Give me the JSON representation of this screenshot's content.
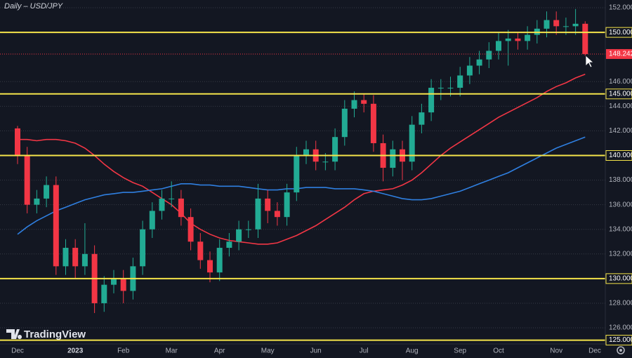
{
  "chart_data": {
    "type": "candlestick",
    "title": "Daily – USD/JPY",
    "watermark": "TradingView",
    "categories": [
      "Dec",
      null,
      null,
      null,
      null,
      null,
      "2023",
      null,
      null,
      null,
      null,
      "Feb",
      null,
      null,
      null,
      null,
      "Mar",
      null,
      null,
      null,
      null,
      "Apr",
      null,
      null,
      null,
      null,
      "May",
      null,
      null,
      null,
      null,
      "Jun",
      null,
      null,
      null,
      null,
      "Jul",
      null,
      null,
      null,
      null,
      "Aug",
      null,
      null,
      null,
      null,
      "Sep",
      null,
      null,
      null,
      "Oct",
      null,
      null,
      null,
      null,
      null,
      "Nov",
      null,
      null,
      null,
      "Dec"
    ],
    "open": [
      142.2,
      140.0,
      136.0,
      136.5,
      137.6,
      131.0,
      132.5,
      131.0,
      132.0,
      128.0,
      129.5,
      130.0,
      129.0,
      131.0,
      134.0,
      135.5,
      136.5,
      136.5,
      135.0,
      133.0,
      131.5,
      130.5,
      132.5,
      133.0,
      134.0,
      134.0,
      136.5,
      135.5,
      135.0,
      137.0,
      140.0,
      140.5,
      139.5,
      139.5,
      141.5,
      143.8,
      144.5,
      144.2,
      141.0,
      139.0,
      140.5,
      139.5,
      142.5,
      143.5,
      145.5,
      145.5,
      145.5,
      146.5,
      147.3,
      147.8,
      148.5,
      149.3,
      149.5,
      149.3,
      149.8,
      150.3,
      151.0,
      150.5,
      150.5,
      150.7,
      null
    ],
    "high": [
      142.4,
      140.7,
      137.2,
      138.3,
      138.3,
      133.2,
      133.2,
      134.5,
      132.7,
      130.2,
      130.7,
      130.7,
      131.7,
      134.7,
      136.2,
      137.2,
      137.9,
      137.2,
      135.7,
      133.7,
      132.2,
      133.2,
      133.7,
      134.7,
      134.7,
      137.7,
      137.2,
      136.2,
      137.7,
      140.7,
      141.2,
      141.2,
      140.2,
      142.2,
      144.5,
      145.2,
      145.0,
      144.9,
      141.7,
      141.2,
      141.2,
      143.2,
      144.2,
      146.2,
      146.2,
      146.4,
      147.2,
      148.0,
      148.5,
      149.2,
      150.0,
      150.2,
      150.0,
      150.5,
      151.0,
      151.7,
      151.7,
      151.2,
      151.9,
      150.9,
      null
    ],
    "low": [
      139.3,
      135.3,
      135.3,
      135.8,
      130.3,
      130.3,
      130.0,
      130.3,
      127.2,
      127.3,
      128.8,
      128.0,
      128.3,
      130.3,
      133.3,
      134.8,
      135.8,
      134.3,
      132.3,
      130.8,
      129.7,
      129.8,
      131.8,
      132.3,
      133.3,
      133.3,
      134.5,
      134.3,
      134.3,
      136.3,
      139.3,
      138.8,
      138.8,
      138.8,
      140.8,
      143.1,
      143.5,
      140.3,
      137.9,
      138.3,
      138.0,
      138.8,
      141.8,
      142.8,
      144.5,
      144.8,
      144.8,
      145.8,
      146.6,
      147.1,
      147.8,
      147.3,
      148.6,
      148.6,
      149.1,
      149.6,
      149.8,
      149.8,
      149.8,
      148.1,
      null
    ],
    "close": [
      140.0,
      136.0,
      136.5,
      137.6,
      131.0,
      132.5,
      131.0,
      132.0,
      128.0,
      129.5,
      130.0,
      129.0,
      131.0,
      134.0,
      135.5,
      136.5,
      136.5,
      135.0,
      133.0,
      131.5,
      130.5,
      132.5,
      133.0,
      134.0,
      134.0,
      136.5,
      135.5,
      135.0,
      137.0,
      140.0,
      140.5,
      139.5,
      139.5,
      141.5,
      143.8,
      144.5,
      144.2,
      141.0,
      139.0,
      140.5,
      139.5,
      142.5,
      143.5,
      145.5,
      145.5,
      145.5,
      146.5,
      147.3,
      147.8,
      148.5,
      149.3,
      149.5,
      149.3,
      149.8,
      150.3,
      151.0,
      150.5,
      150.5,
      150.7,
      148.242,
      null
    ],
    "up_color": "#22ab94",
    "down_color": "#f23645",
    "series": [
      {
        "color": "#f23645",
        "values": [
          141.3,
          141.3,
          141.2,
          141.3,
          141.3,
          141.2,
          141.0,
          140.6,
          140.0,
          139.3,
          138.7,
          138.2,
          137.8,
          137.5,
          137.0,
          136.5,
          136.0,
          135.3,
          134.5,
          134.0,
          133.6,
          133.3,
          133.1,
          133.0,
          132.9,
          132.8,
          132.8,
          132.9,
          133.2,
          133.5,
          133.9,
          134.3,
          134.8,
          135.3,
          135.8,
          136.4,
          136.9,
          137.1,
          137.2,
          137.3,
          137.6,
          138.0,
          138.6,
          139.3,
          140.0,
          140.6,
          141.1,
          141.6,
          142.1,
          142.6,
          143.1,
          143.5,
          143.9,
          144.3,
          144.7,
          145.2,
          145.6,
          145.9,
          146.3,
          146.6,
          null
        ]
      },
      {
        "color": "#2f7fe0",
        "values": [
          133.6,
          134.2,
          134.7,
          135.1,
          135.5,
          135.8,
          136.1,
          136.4,
          136.6,
          136.8,
          136.9,
          137.0,
          137.0,
          137.1,
          137.2,
          137.3,
          137.5,
          137.7,
          137.7,
          137.6,
          137.6,
          137.5,
          137.5,
          137.5,
          137.4,
          137.3,
          137.2,
          137.2,
          137.3,
          137.3,
          137.4,
          137.4,
          137.4,
          137.3,
          137.3,
          137.3,
          137.2,
          137.1,
          136.9,
          136.7,
          136.5,
          136.4,
          136.4,
          136.5,
          136.7,
          136.9,
          137.1,
          137.4,
          137.7,
          138.0,
          138.3,
          138.6,
          139.0,
          139.4,
          139.8,
          140.2,
          140.6,
          140.9,
          141.2,
          141.5,
          null
        ]
      }
    ],
    "levels": [
      {
        "value": 150,
        "label": "150.000"
      },
      {
        "value": 145,
        "label": "145.000"
      },
      {
        "value": 140,
        "label": "140.000"
      },
      {
        "value": 130,
        "label": "130.000"
      },
      {
        "value": 125,
        "label": "125.000"
      }
    ],
    "level_color": "#f5e44a",
    "last_price": {
      "value": 148.242,
      "label": "148.242"
    },
    "ylim": [
      124.69,
      152.63
    ],
    "yticks": [
      {
        "value": 152,
        "label": "152.000"
      },
      {
        "value": 146,
        "label": "146.000"
      },
      {
        "value": 144,
        "label": "144.000"
      },
      {
        "value": 142,
        "label": "142.000"
      },
      {
        "value": 138,
        "label": "138.000"
      },
      {
        "value": 136,
        "label": "136.000"
      },
      {
        "value": 134,
        "label": "134.000"
      },
      {
        "value": 132,
        "label": "132.000"
      },
      {
        "value": 128,
        "label": "128.000"
      },
      {
        "value": 126,
        "label": "126.000"
      }
    ],
    "grid": true
  }
}
